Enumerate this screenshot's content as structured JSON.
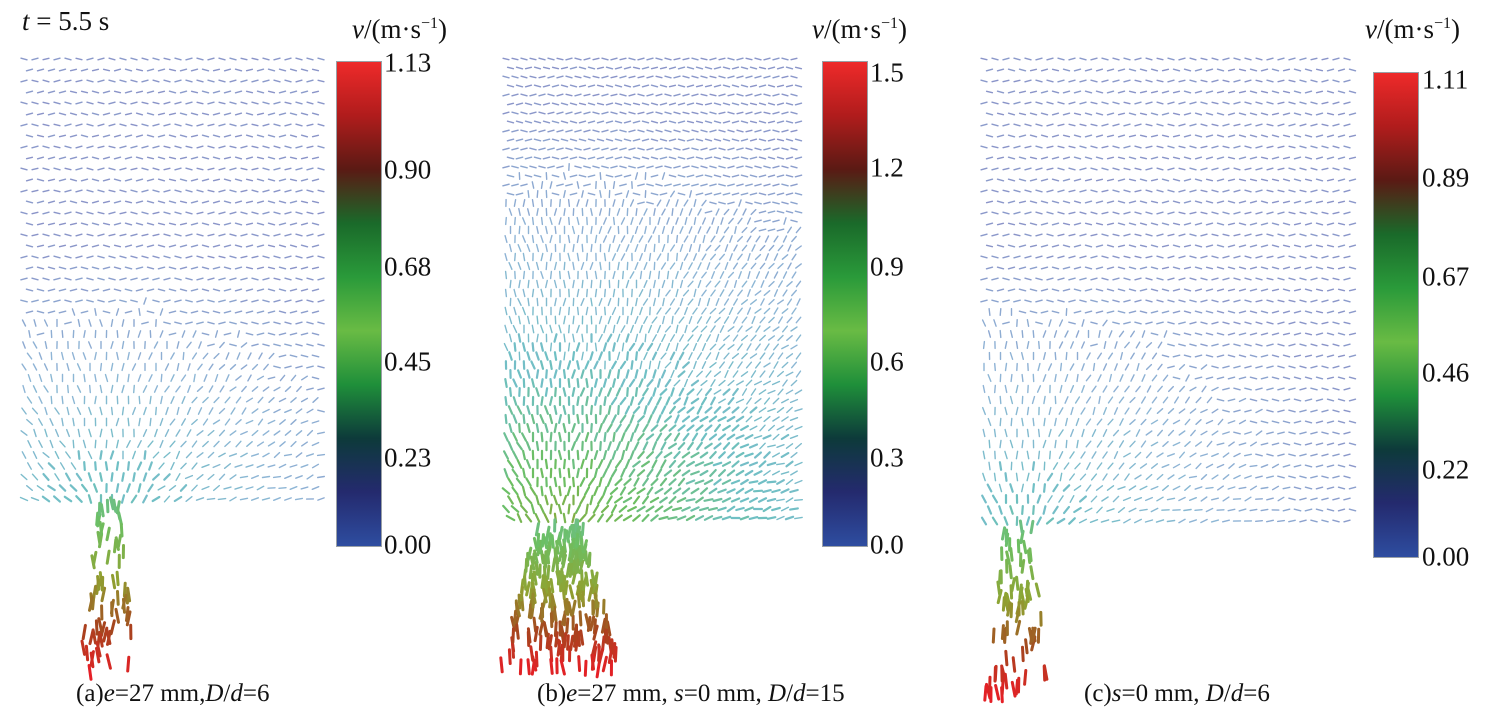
{
  "time_label": {
    "var": "t",
    "rest": " = 5.5 s"
  },
  "colorbar_title": {
    "var": "v",
    "unit_open": "/(m·s",
    "exp": "−1",
    "close": ")"
  },
  "colormap": [
    "#2e4da0",
    "#242a6e",
    "#0d3a3a",
    "#1f8f3a",
    "#69bb44",
    "#2a9a3a",
    "#1a6a2a",
    "#5a1a14",
    "#b01c1c",
    "#ee2a2a"
  ],
  "panels": [
    {
      "id": "a",
      "caption": [
        {
          "t": "(a)"
        },
        {
          "t": "e",
          "i": true
        },
        {
          "t": "=27 mm,"
        },
        {
          "t": "D",
          "i": true
        },
        {
          "t": "/"
        },
        {
          "t": "d",
          "i": true
        },
        {
          "t": "=6"
        }
      ],
      "ticks": [
        "0.00",
        "0.23",
        "0.45",
        "0.68",
        "0.90",
        "1.13"
      ]
    },
    {
      "id": "b",
      "caption": [
        {
          "t": "(b)"
        },
        {
          "t": "e",
          "i": true
        },
        {
          "t": "=27 mm, "
        },
        {
          "t": "s",
          "i": true
        },
        {
          "t": "=0 mm, "
        },
        {
          "t": "D",
          "i": true
        },
        {
          "t": "/"
        },
        {
          "t": "d",
          "i": true
        },
        {
          "t": "=15"
        }
      ],
      "ticks": [
        "0.0",
        "0.3",
        "0.6",
        "0.9",
        "1.2",
        "1.5"
      ]
    },
    {
      "id": "c",
      "caption": [
        {
          "t": "(c)"
        },
        {
          "t": "s",
          "i": true
        },
        {
          "t": "=0 mm, "
        },
        {
          "t": "D",
          "i": true
        },
        {
          "t": "/"
        },
        {
          "t": "d",
          "i": true
        },
        {
          "t": "=6"
        }
      ],
      "ticks": [
        "0.00",
        "0.22",
        "0.46",
        "0.67",
        "0.89",
        "1.11"
      ]
    }
  ]
}
